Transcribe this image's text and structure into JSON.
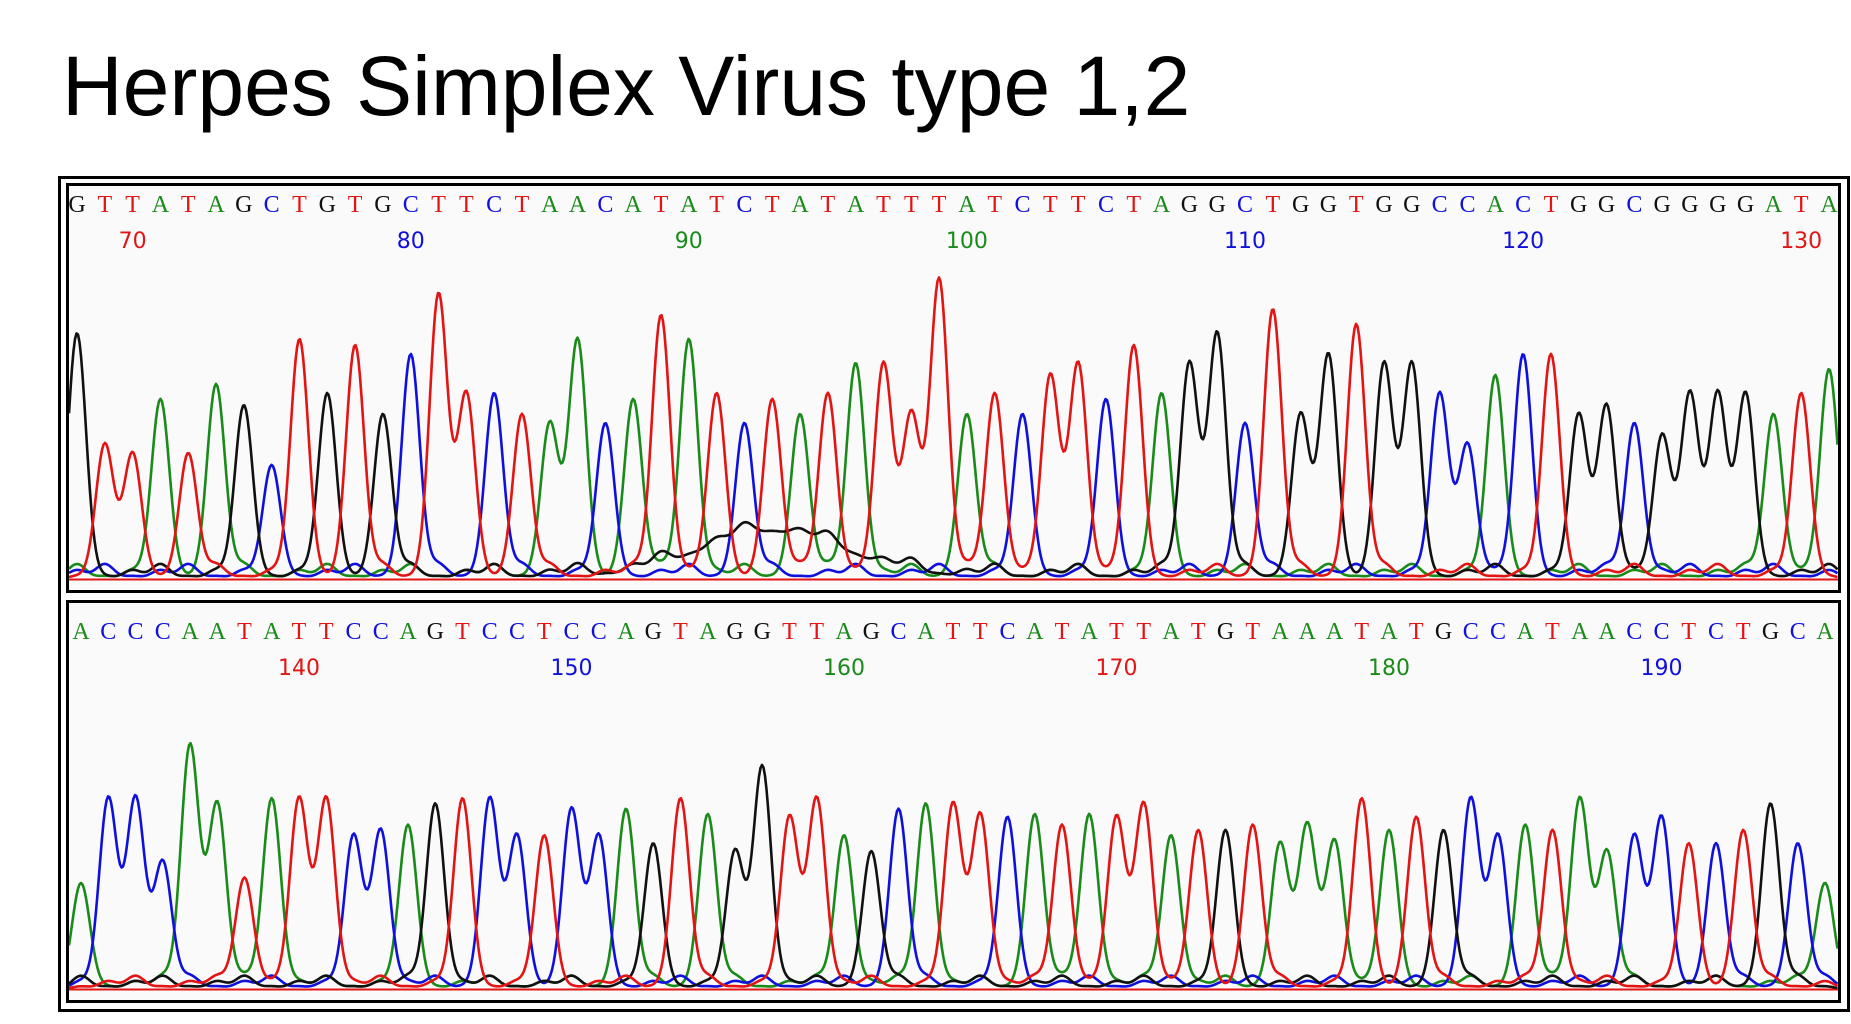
{
  "title": "Herpes Simplex Virus type 1,2",
  "colors": {
    "A": "#1a8a1a",
    "C": "#1010dd",
    "G": "#111111",
    "T": "#e21414"
  },
  "chart_data": [
    {
      "type": "line",
      "panel": "top",
      "sequence": "GTTATAGCTGTGCTTCTAACATATCTATATTTATCTTCTAGGCTGGTGGCCACTGGCGGGGATA",
      "positions": [
        70,
        80,
        90,
        100,
        110,
        120,
        130
      ],
      "position_colors": [
        "T",
        "C",
        "A",
        "A",
        "C",
        "C",
        "T"
      ],
      "first_base_position": 68,
      "last_base_position": 131,
      "peak_heights": [
        0.82,
        0.45,
        0.42,
        0.6,
        0.42,
        0.65,
        0.58,
        0.38,
        0.8,
        0.62,
        0.78,
        0.55,
        0.75,
        0.95,
        0.62,
        0.62,
        0.55,
        0.52,
        0.8,
        0.52,
        0.6,
        0.88,
        0.8,
        0.62,
        0.52,
        0.6,
        0.55,
        0.62,
        0.72,
        0.72,
        0.55,
        1.0,
        0.55,
        0.62,
        0.55,
        0.68,
        0.72,
        0.6,
        0.78,
        0.62,
        0.72,
        0.82,
        0.52,
        0.9,
        0.55,
        0.75,
        0.85,
        0.72,
        0.72,
        0.62,
        0.45,
        0.68,
        0.75,
        0.75,
        0.55,
        0.58,
        0.52,
        0.48,
        0.62,
        0.62,
        0.62,
        0.55,
        0.62,
        0.7
      ],
      "background_hump": {
        "center": 93,
        "height": 0.15,
        "color": "G"
      }
    },
    {
      "type": "line",
      "panel": "bottom",
      "sequence": "ACCCAATATTCCAGTCCTCCAGTAGGTTAGCATTCATATTATGTAAATATGCCATAACCTCTGCA",
      "positions": [
        140,
        150,
        160,
        170,
        180,
        190
      ],
      "position_colors": [
        "T",
        "C",
        "A",
        "T",
        "A",
        "C"
      ],
      "first_base_position": 132,
      "last_base_position": 196,
      "peak_heights": [
        0.4,
        0.72,
        0.72,
        0.48,
        0.92,
        0.7,
        0.42,
        0.72,
        0.72,
        0.72,
        0.58,
        0.6,
        0.62,
        0.7,
        0.72,
        0.72,
        0.58,
        0.58,
        0.68,
        0.58,
        0.68,
        0.55,
        0.72,
        0.66,
        0.52,
        0.84,
        0.65,
        0.72,
        0.58,
        0.52,
        0.68,
        0.7,
        0.7,
        0.66,
        0.65,
        0.66,
        0.62,
        0.66,
        0.65,
        0.7,
        0.58,
        0.6,
        0.6,
        0.62,
        0.55,
        0.62,
        0.56,
        0.72,
        0.6,
        0.65,
        0.6,
        0.72,
        0.58,
        0.62,
        0.6,
        0.72,
        0.52,
        0.58,
        0.65,
        0.55,
        0.55,
        0.6,
        0.7,
        0.55,
        0.4
      ]
    }
  ]
}
